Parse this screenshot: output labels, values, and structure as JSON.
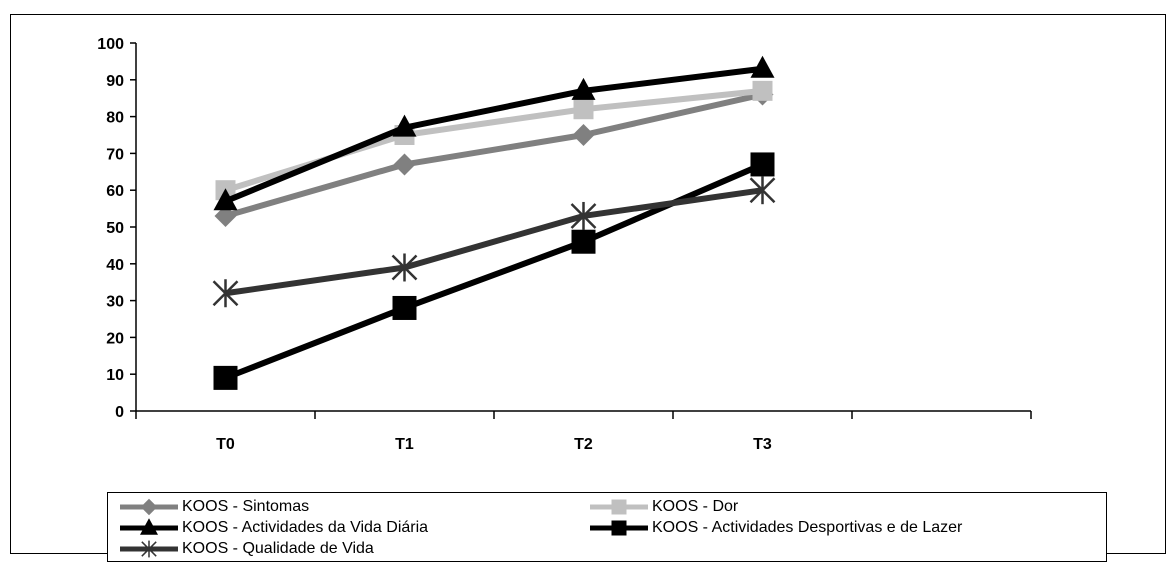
{
  "chart_data": {
    "type": "line",
    "title": "",
    "xlabel": "",
    "ylabel": "",
    "categories": [
      "T0",
      "T1",
      "T2",
      "T3"
    ],
    "ylim": [
      0,
      100
    ],
    "yticks": [
      0,
      10,
      20,
      30,
      40,
      50,
      60,
      70,
      80,
      90,
      100
    ],
    "grid": false,
    "legend_position": "bottom",
    "series": [
      {
        "name": "KOOS - Sintomas",
        "values": [
          53,
          67,
          75,
          86
        ],
        "color": "#808080",
        "marker": "diamond"
      },
      {
        "name": "KOOS - Dor",
        "values": [
          60,
          75,
          82,
          87
        ],
        "color": "#c0c0c0",
        "marker": "square"
      },
      {
        "name": "KOOS - Actividades da Vida Diária",
        "values": [
          57,
          77,
          87,
          93
        ],
        "color": "#000000",
        "marker": "triangle"
      },
      {
        "name": "KOOS - Actividades Desportivas e de Lazer",
        "values": [
          9,
          28,
          46,
          67
        ],
        "color": "#000000",
        "marker": "square-large"
      },
      {
        "name": "KOOS - Qualidade de Vida",
        "values": [
          32,
          39,
          53,
          60
        ],
        "color": "#333333",
        "marker": "asterisk"
      }
    ]
  }
}
